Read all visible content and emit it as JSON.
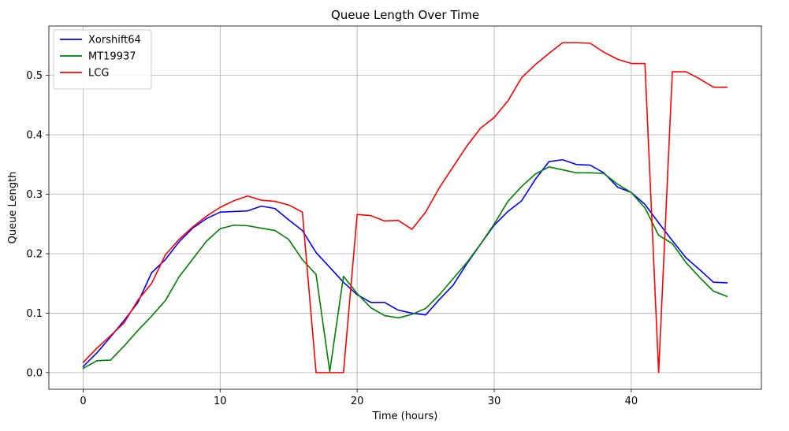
{
  "chart_data": {
    "type": "line",
    "title": "Queue Length Over Time",
    "xlabel": "Time (hours)",
    "ylabel": "Queue Length",
    "xlim": [
      -2.5,
      49.5
    ],
    "ylim": [
      -0.028,
      0.583
    ],
    "xticks": [
      0,
      10,
      20,
      30,
      40
    ],
    "xtick_labels": [
      "0",
      "10",
      "20",
      "30",
      "40"
    ],
    "yticks": [
      0.0,
      0.1,
      0.2,
      0.3,
      0.4,
      0.5
    ],
    "ytick_labels": [
      "0.0",
      "0.1",
      "0.2",
      "0.3",
      "0.4",
      "0.5"
    ],
    "grid": true,
    "legend_position": "top-left",
    "x": [
      0,
      1,
      2,
      3,
      4,
      5,
      6,
      7,
      8,
      9,
      10,
      11,
      12,
      13,
      14,
      15,
      16,
      17,
      18,
      19,
      20,
      21,
      22,
      23,
      24,
      25,
      26,
      27,
      28,
      29,
      30,
      31,
      32,
      33,
      34,
      35,
      36,
      37,
      38,
      39,
      40,
      41,
      42,
      43,
      44,
      45,
      46,
      47
    ],
    "series": [
      {
        "name": "Xorshift64",
        "color": "#0000ff",
        "values": [
          0.01,
          0.033,
          0.06,
          0.088,
          0.118,
          0.168,
          0.19,
          0.22,
          0.243,
          0.259,
          0.27,
          0.271,
          0.272,
          0.28,
          0.276,
          0.257,
          0.239,
          0.202,
          0.177,
          0.152,
          0.131,
          0.118,
          0.118,
          0.105,
          0.1,
          0.097,
          0.123,
          0.147,
          0.183,
          0.216,
          0.248,
          0.271,
          0.289,
          0.325,
          0.355,
          0.358,
          0.35,
          0.349,
          0.336,
          0.312,
          0.303,
          0.283,
          0.252,
          0.222,
          0.193,
          0.173,
          0.152,
          0.151
        ]
      },
      {
        "name": "MT19937",
        "color": "#008000",
        "values": [
          0.007,
          0.02,
          0.021,
          0.045,
          0.071,
          0.095,
          0.121,
          0.161,
          0.191,
          0.221,
          0.242,
          0.248,
          0.247,
          0.243,
          0.239,
          0.224,
          0.19,
          0.165,
          0.002,
          0.162,
          0.133,
          0.109,
          0.096,
          0.092,
          0.098,
          0.108,
          0.131,
          0.158,
          0.185,
          0.216,
          0.25,
          0.288,
          0.313,
          0.334,
          0.346,
          0.341,
          0.336,
          0.336,
          0.335,
          0.317,
          0.303,
          0.277,
          0.231,
          0.217,
          0.185,
          0.16,
          0.137,
          0.128
        ]
      },
      {
        "name": "LCG",
        "color": "#ff0000",
        "values": [
          0.017,
          0.041,
          0.062,
          0.084,
          0.122,
          0.15,
          0.198,
          0.224,
          0.245,
          0.263,
          0.278,
          0.289,
          0.297,
          0.29,
          0.288,
          0.282,
          0.27,
          0.0,
          0.0,
          0.0,
          0.266,
          0.264,
          0.255,
          0.256,
          0.241,
          0.27,
          0.311,
          0.346,
          0.381,
          0.411,
          0.429,
          0.457,
          0.496,
          0.518,
          0.537,
          0.555,
          0.555,
          0.554,
          0.539,
          0.527,
          0.52,
          0.52,
          0.0,
          0.506,
          0.506,
          0.494,
          0.48,
          0.48
        ]
      }
    ]
  }
}
